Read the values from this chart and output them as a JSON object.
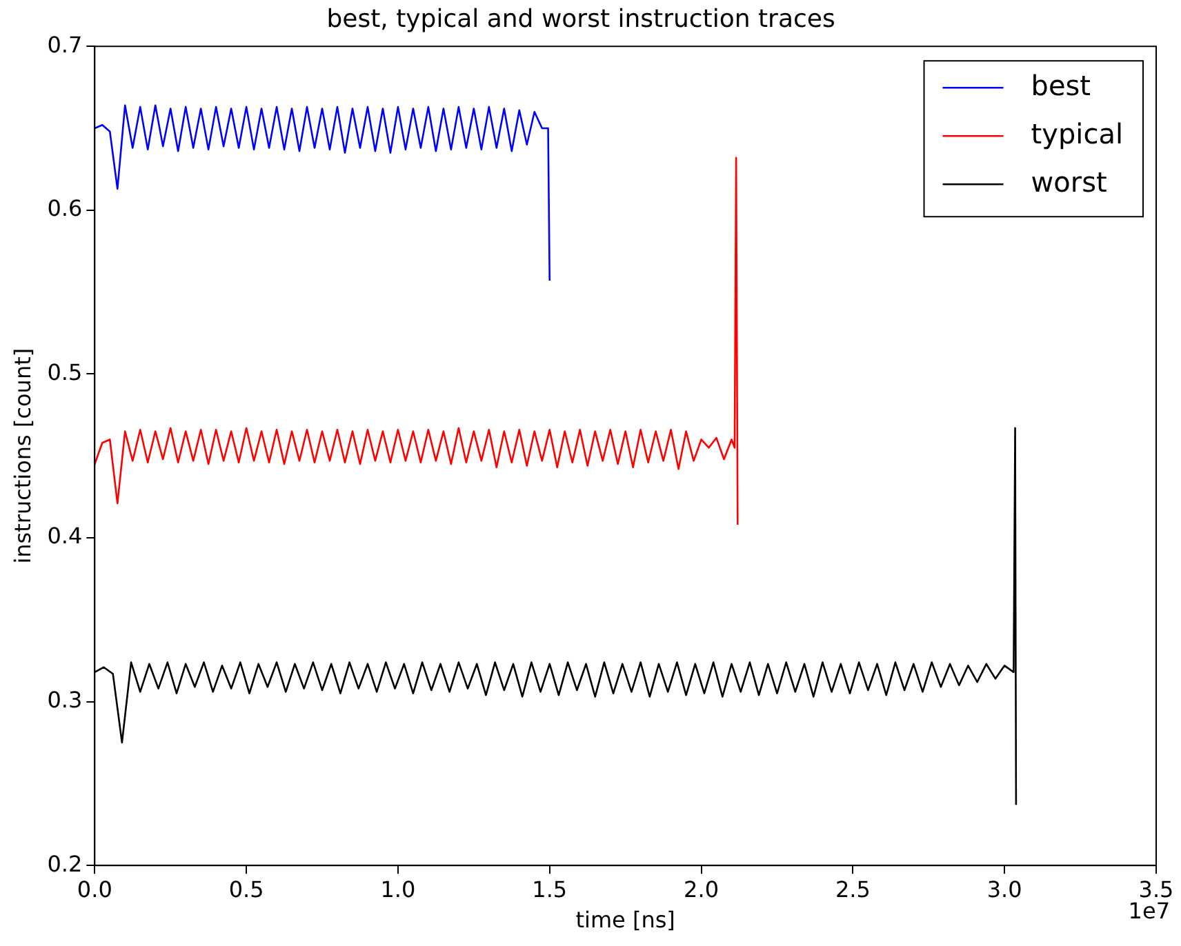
{
  "chart_data": {
    "type": "line",
    "title": "best, typical and worst instruction traces",
    "xlabel": "time [ns]",
    "ylabel": "instructions [count]",
    "annotations": [
      "1e7"
    ],
    "xlim": [
      0,
      3.5
    ],
    "xticks": [
      {
        "value": 0,
        "label": "0.0"
      },
      0.5,
      {
        "value": 1,
        "label": "1.0"
      },
      1.5,
      {
        "value": 2,
        "label": "2.0"
      },
      2.5,
      {
        "value": 3,
        "label": "3.0"
      },
      3.5
    ],
    "ylim": [
      0.2,
      0.7
    ],
    "yticks": [
      0.2,
      0.3,
      0.4,
      0.5,
      0.6,
      0.7
    ],
    "grid": false,
    "legend": "top right",
    "marker": "none",
    "line_style": "solid",
    "series": [
      {
        "name": "best",
        "color": "#0000ff",
        "x": [
          0,
          0.025,
          0.05,
          0.075,
          0.1,
          0.125,
          0.15,
          0.175,
          0.2,
          0.225,
          0.25,
          0.275,
          0.3,
          0.325,
          0.35,
          0.375,
          0.4,
          0.425,
          0.45,
          0.475,
          0.5,
          0.525,
          0.55,
          0.575,
          0.6,
          0.625,
          0.65,
          0.675,
          0.7,
          0.725,
          0.75,
          0.775,
          0.8,
          0.825,
          0.85,
          0.875,
          0.9,
          0.925,
          0.95,
          0.975,
          1.0,
          1.025,
          1.05,
          1.075,
          1.1,
          1.125,
          1.15,
          1.175,
          1.2,
          1.225,
          1.25,
          1.275,
          1.3,
          1.325,
          1.35,
          1.375,
          1.4,
          1.425,
          1.45,
          1.475,
          1.495,
          1.5
        ],
        "values": [
          0.65,
          0.652,
          0.648,
          0.613,
          0.664,
          0.638,
          0.663,
          0.637,
          0.664,
          0.639,
          0.662,
          0.636,
          0.663,
          0.638,
          0.662,
          0.637,
          0.663,
          0.639,
          0.662,
          0.638,
          0.663,
          0.637,
          0.662,
          0.638,
          0.663,
          0.637,
          0.662,
          0.636,
          0.663,
          0.638,
          0.662,
          0.637,
          0.663,
          0.635,
          0.662,
          0.638,
          0.663,
          0.636,
          0.662,
          0.635,
          0.663,
          0.637,
          0.662,
          0.638,
          0.663,
          0.636,
          0.662,
          0.637,
          0.663,
          0.638,
          0.662,
          0.637,
          0.663,
          0.638,
          0.662,
          0.636,
          0.661,
          0.64,
          0.66,
          0.65,
          0.65,
          0.557
        ]
      },
      {
        "name": "typical",
        "color": "#ff0000",
        "x": [
          0,
          0.025,
          0.05,
          0.075,
          0.1,
          0.125,
          0.15,
          0.175,
          0.2,
          0.225,
          0.25,
          0.275,
          0.3,
          0.325,
          0.35,
          0.375,
          0.4,
          0.425,
          0.45,
          0.475,
          0.5,
          0.525,
          0.55,
          0.575,
          0.6,
          0.625,
          0.65,
          0.675,
          0.7,
          0.725,
          0.75,
          0.775,
          0.8,
          0.825,
          0.85,
          0.875,
          0.9,
          0.925,
          0.95,
          0.975,
          1.0,
          1.025,
          1.05,
          1.075,
          1.1,
          1.125,
          1.15,
          1.175,
          1.2,
          1.225,
          1.25,
          1.275,
          1.3,
          1.325,
          1.35,
          1.375,
          1.4,
          1.425,
          1.45,
          1.475,
          1.5,
          1.525,
          1.55,
          1.575,
          1.6,
          1.625,
          1.65,
          1.675,
          1.7,
          1.725,
          1.75,
          1.775,
          1.8,
          1.825,
          1.85,
          1.875,
          1.9,
          1.925,
          1.95,
          1.975,
          2.0,
          2.025,
          2.05,
          2.075,
          2.1,
          2.11,
          2.115,
          2.12
        ],
        "values": [
          0.445,
          0.458,
          0.46,
          0.421,
          0.465,
          0.447,
          0.466,
          0.446,
          0.465,
          0.448,
          0.467,
          0.446,
          0.465,
          0.447,
          0.466,
          0.445,
          0.466,
          0.447,
          0.465,
          0.446,
          0.467,
          0.447,
          0.465,
          0.446,
          0.466,
          0.445,
          0.465,
          0.447,
          0.466,
          0.446,
          0.465,
          0.447,
          0.466,
          0.446,
          0.465,
          0.445,
          0.466,
          0.447,
          0.465,
          0.446,
          0.466,
          0.447,
          0.465,
          0.446,
          0.466,
          0.447,
          0.465,
          0.445,
          0.467,
          0.446,
          0.465,
          0.447,
          0.466,
          0.443,
          0.465,
          0.446,
          0.466,
          0.444,
          0.465,
          0.447,
          0.466,
          0.443,
          0.465,
          0.446,
          0.466,
          0.444,
          0.465,
          0.447,
          0.466,
          0.445,
          0.465,
          0.443,
          0.466,
          0.446,
          0.465,
          0.447,
          0.466,
          0.442,
          0.465,
          0.447,
          0.46,
          0.455,
          0.461,
          0.448,
          0.46,
          0.455,
          0.632,
          0.408
        ]
      },
      {
        "name": "worst",
        "color": "#000000",
        "x": [
          0,
          0.03,
          0.06,
          0.09,
          0.12,
          0.15,
          0.18,
          0.21,
          0.24,
          0.27,
          0.3,
          0.33,
          0.36,
          0.39,
          0.42,
          0.45,
          0.48,
          0.51,
          0.54,
          0.57,
          0.6,
          0.63,
          0.66,
          0.69,
          0.72,
          0.75,
          0.78,
          0.81,
          0.84,
          0.87,
          0.9,
          0.93,
          0.96,
          0.99,
          1.02,
          1.05,
          1.08,
          1.11,
          1.14,
          1.17,
          1.2,
          1.23,
          1.26,
          1.29,
          1.32,
          1.35,
          1.38,
          1.41,
          1.44,
          1.47,
          1.5,
          1.53,
          1.56,
          1.59,
          1.62,
          1.65,
          1.68,
          1.71,
          1.74,
          1.77,
          1.8,
          1.83,
          1.86,
          1.89,
          1.92,
          1.95,
          1.98,
          2.01,
          2.04,
          2.07,
          2.1,
          2.13,
          2.16,
          2.19,
          2.22,
          2.25,
          2.28,
          2.31,
          2.34,
          2.37,
          2.4,
          2.43,
          2.46,
          2.49,
          2.52,
          2.55,
          2.58,
          2.61,
          2.64,
          2.67,
          2.7,
          2.73,
          2.76,
          2.79,
          2.82,
          2.85,
          2.88,
          2.91,
          2.94,
          2.97,
          3.0,
          3.03,
          3.035,
          3.038
        ],
        "values": [
          0.318,
          0.321,
          0.317,
          0.275,
          0.324,
          0.306,
          0.323,
          0.308,
          0.324,
          0.305,
          0.323,
          0.309,
          0.324,
          0.306,
          0.322,
          0.308,
          0.324,
          0.305,
          0.323,
          0.309,
          0.324,
          0.306,
          0.323,
          0.308,
          0.324,
          0.307,
          0.323,
          0.305,
          0.324,
          0.308,
          0.323,
          0.306,
          0.324,
          0.308,
          0.323,
          0.305,
          0.324,
          0.307,
          0.323,
          0.306,
          0.324,
          0.308,
          0.323,
          0.304,
          0.324,
          0.307,
          0.323,
          0.303,
          0.324,
          0.306,
          0.323,
          0.304,
          0.324,
          0.307,
          0.323,
          0.303,
          0.324,
          0.305,
          0.323,
          0.306,
          0.324,
          0.303,
          0.323,
          0.306,
          0.324,
          0.304,
          0.323,
          0.305,
          0.324,
          0.303,
          0.323,
          0.306,
          0.324,
          0.304,
          0.323,
          0.305,
          0.324,
          0.306,
          0.323,
          0.303,
          0.324,
          0.306,
          0.323,
          0.305,
          0.324,
          0.307,
          0.323,
          0.304,
          0.324,
          0.307,
          0.323,
          0.306,
          0.324,
          0.309,
          0.323,
          0.31,
          0.322,
          0.312,
          0.323,
          0.314,
          0.322,
          0.318,
          0.467,
          0.237
        ]
      }
    ]
  }
}
